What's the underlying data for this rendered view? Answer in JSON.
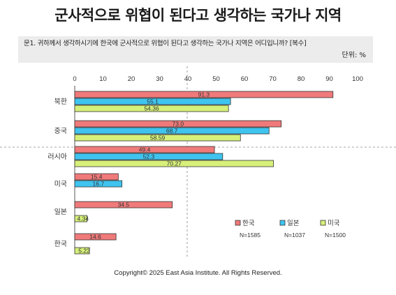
{
  "title": "군사적으로 위협이 된다고 생각하는 국가나 지역",
  "question": "문1. 귀하께서 생각하시기에 한국에 군사적으로 위협이 된다고 생각하는 국가나 지역은 어디입니까? [복수]",
  "unit": "단위: %",
  "copyright": "Copyright© 2025 East Asia Institute. All Rights Reserved.",
  "chart_data": {
    "type": "bar",
    "orientation": "horizontal",
    "categories": [
      "북한",
      "중국",
      "러시아",
      "미국",
      "일본",
      "한국"
    ],
    "xlim": [
      0,
      100
    ],
    "ticks": [
      0,
      10,
      20,
      30,
      40,
      50,
      60,
      70,
      80,
      90,
      100
    ],
    "grid": false,
    "legend_position": "bottom-right",
    "series": [
      {
        "name": "한국",
        "n": "N=1585",
        "color": "#f07a7a",
        "values": [
          91.3,
          73.0,
          49.4,
          15.4,
          34.5,
          14.6
        ],
        "labels": [
          "91.3",
          "73.0",
          "49.4",
          "15.4",
          "34.5",
          "14.6"
        ]
      },
      {
        "name": "일본",
        "n": "N=1037",
        "color": "#3fc4f0",
        "values": [
          55.1,
          68.7,
          52.3,
          16.7,
          null,
          null
        ],
        "labels": [
          "55.1",
          "68.7",
          "52.3",
          "16.7",
          "",
          ""
        ]
      },
      {
        "name": "미국",
        "n": "N=1500",
        "color": "#d6f07a",
        "values": [
          54.36,
          58.59,
          70.27,
          null,
          4.34,
          5.22
        ],
        "labels": [
          "54.36",
          "58.59",
          "70.27",
          "",
          "4.34",
          "5.22"
        ]
      }
    ]
  }
}
